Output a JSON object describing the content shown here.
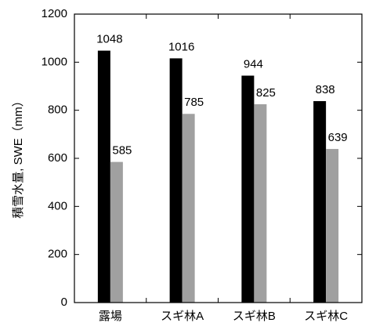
{
  "chart_data": {
    "type": "bar",
    "ylabel": "積雪水量, SWE（mm）",
    "categories": [
      "露場",
      "スギ林A",
      "スギ林B",
      "スギ林C"
    ],
    "series": [
      {
        "color": "#000000",
        "values": [
          1048,
          1016,
          944,
          838
        ]
      },
      {
        "color": "#a0a0a0",
        "values": [
          585,
          785,
          825,
          639
        ]
      }
    ],
    "ylim": [
      0,
      1200
    ],
    "yticks": [
      0,
      200,
      400,
      600,
      800,
      1000,
      1200
    ]
  }
}
